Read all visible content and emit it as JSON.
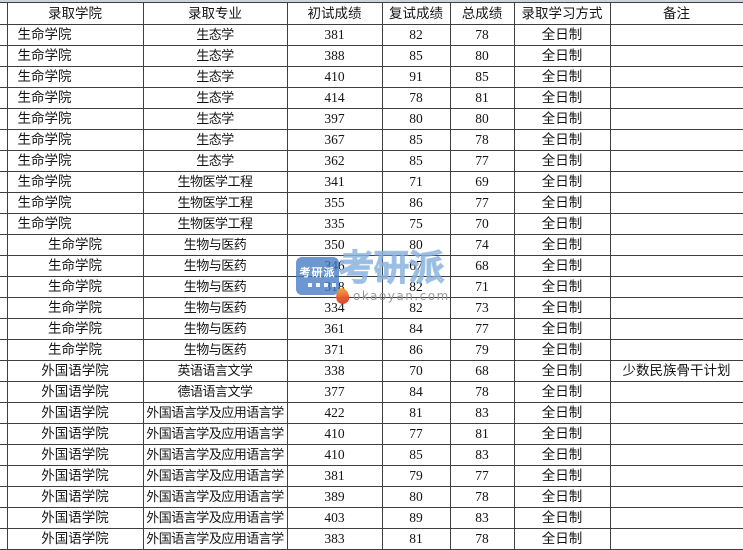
{
  "chart_data": {
    "type": "table",
    "columns": [
      "录取学院",
      "录取专业",
      "初试成绩",
      "复试成绩",
      "总成绩",
      "录取学习方式",
      "备注"
    ],
    "rows": [
      [
        "生命学院",
        "生态学",
        381,
        82,
        78,
        "全日制",
        ""
      ],
      [
        "生命学院",
        "生态学",
        388,
        85,
        80,
        "全日制",
        ""
      ],
      [
        "生命学院",
        "生态学",
        410,
        91,
        85,
        "全日制",
        ""
      ],
      [
        "生命学院",
        "生态学",
        414,
        78,
        81,
        "全日制",
        ""
      ],
      [
        "生命学院",
        "生态学",
        397,
        80,
        80,
        "全日制",
        ""
      ],
      [
        "生命学院",
        "生态学",
        367,
        85,
        78,
        "全日制",
        ""
      ],
      [
        "生命学院",
        "生态学",
        362,
        85,
        77,
        "全日制",
        ""
      ],
      [
        "生命学院",
        "生物医学工程",
        341,
        71,
        69,
        "全日制",
        ""
      ],
      [
        "生命学院",
        "生物医学工程",
        355,
        86,
        77,
        "全日制",
        ""
      ],
      [
        "生命学院",
        "生物医学工程",
        335,
        75,
        70,
        "全日制",
        ""
      ],
      [
        "生命学院",
        "生物与医药",
        350,
        80,
        74,
        "全日制",
        ""
      ],
      [
        "生命学院",
        "生物与医药",
        346,
        67,
        68,
        "全日制",
        ""
      ],
      [
        "生命学院",
        "生物与医药",
        318,
        82,
        71,
        "全日制",
        ""
      ],
      [
        "生命学院",
        "生物与医药",
        334,
        82,
        73,
        "全日制",
        ""
      ],
      [
        "生命学院",
        "生物与医药",
        361,
        84,
        77,
        "全日制",
        ""
      ],
      [
        "生命学院",
        "生物与医药",
        371,
        86,
        79,
        "全日制",
        ""
      ],
      [
        "外国语学院",
        "英语语言文学",
        338,
        70,
        68,
        "全日制",
        "少数民族骨干计划"
      ],
      [
        "外国语学院",
        "德语语言文学",
        377,
        84,
        78,
        "全日制",
        ""
      ],
      [
        "外国语学院",
        "外国语言学及应用语言学",
        422,
        81,
        83,
        "全日制",
        ""
      ],
      [
        "外国语学院",
        "外国语言学及应用语言学",
        410,
        77,
        81,
        "全日制",
        ""
      ],
      [
        "外国语学院",
        "外国语言学及应用语言学",
        410,
        85,
        83,
        "全日制",
        ""
      ],
      [
        "外国语学院",
        "外国语言学及应用语言学",
        381,
        79,
        77,
        "全日制",
        ""
      ],
      [
        "外国语学院",
        "外国语言学及应用语言学",
        389,
        80,
        78,
        "全日制",
        ""
      ],
      [
        "外国语学院",
        "外国语言学及应用语言学",
        403,
        89,
        83,
        "全日制",
        ""
      ],
      [
        "外国语学院",
        "外国语言学及应用语言学",
        383,
        81,
        78,
        "全日制",
        ""
      ]
    ]
  },
  "watermark": {
    "logo_text": "考研派",
    "brand_text": "考研派",
    "url": "okaoyan.com",
    "logo_color": "#427ac4",
    "brand_text_color": "#b7d3f0",
    "url_color": "#949494",
    "flame_color": "#e8552e"
  }
}
